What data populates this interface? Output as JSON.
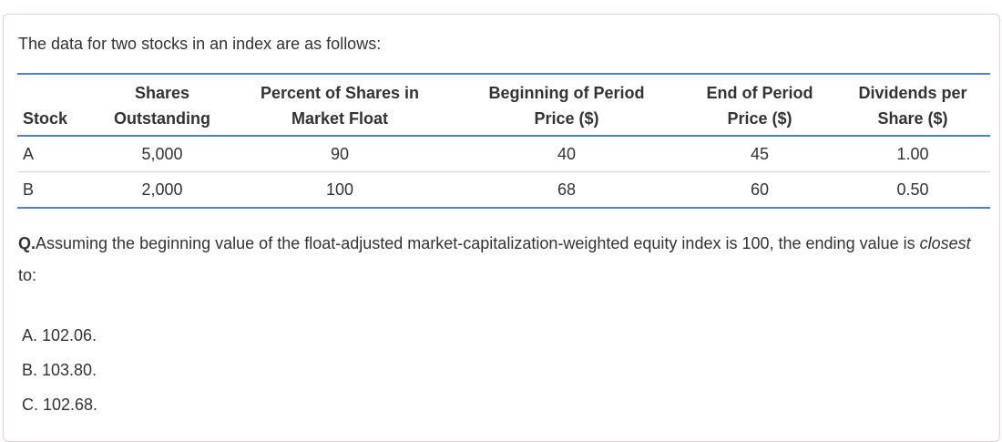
{
  "intro": "The data for two stocks in an index are as follows:",
  "table": {
    "headers": {
      "stock": "Stock",
      "shares_1": "Shares",
      "shares_2": "Outstanding",
      "float_1": "Percent of Shares in",
      "float_2": "Market Float",
      "begin_1": "Beginning of Period",
      "begin_2": "Price ($)",
      "end_1": "End of Period",
      "end_2": "Price ($)",
      "div_1": "Dividends per",
      "div_2": "Share ($)"
    },
    "rows": [
      {
        "stock": "A",
        "shares": "5,000",
        "float": "90",
        "begin": "40",
        "end": "45",
        "div": "1.00"
      },
      {
        "stock": "B",
        "shares": "2,000",
        "float": "100",
        "begin": "68",
        "end": "60",
        "div": "0.50"
      }
    ]
  },
  "question": {
    "label": "Q.",
    "text_before": "Assuming the beginning value of the float-adjusted market-capitalization-weighted equity index is 100, the ending value is ",
    "emphasis": "closest",
    "text_after": " to:"
  },
  "options": [
    "A. 102.06.",
    "B. 103.80.",
    "C. 102.68."
  ]
}
